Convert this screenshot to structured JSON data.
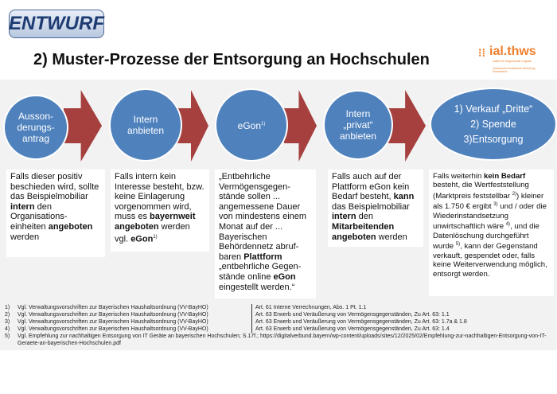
{
  "header": {
    "draft_badge": "ENTWURF",
    "title": "2) Muster-Prozesse der Entsorgung an Hochschulen",
    "logo": {
      "name": "ial.thws",
      "line1": "Institut für Angewandte Logistik",
      "line2": "Technische Hochschule Würzburg-Schweinfurt"
    }
  },
  "colors": {
    "circle": "#4f81bd",
    "arrow": "#a5403f",
    "background": "#f2f2f2"
  },
  "steps": [
    {
      "lines": [
        "Ausson-",
        "derungs-",
        "antrag"
      ]
    },
    {
      "lines": [
        "Intern",
        "anbieten"
      ]
    },
    {
      "label": "eGon",
      "sup": "1)"
    },
    {
      "lines": [
        "Intern",
        "„privat“",
        "anbieten"
      ]
    },
    {
      "lines": [
        "1) Verkauf „Dritte“",
        "2) Spende",
        "3)Entsorgung"
      ]
    }
  ],
  "boxes": [
    {
      "parts": [
        [
          "Falls dieser positiv beschieden wird, sollte das Beispielmobiliar ",
          ""
        ],
        [
          "intern",
          "b"
        ],
        [
          " den Organisations-einheiten ",
          ""
        ],
        [
          "angeboten",
          "b"
        ],
        [
          " werden",
          ""
        ]
      ]
    },
    {
      "parts": [
        [
          "Falls intern kein Interesse besteht, bzw. keine Einlagerung vorgenommen wird, muss es ",
          ""
        ],
        [
          "bayernweit angeboten",
          "b"
        ],
        [
          " werden vgl. ",
          ""
        ],
        [
          "eGon",
          "b"
        ],
        [
          "1)",
          "s"
        ]
      ]
    },
    {
      "parts": [
        [
          "„Entbehrliche Vermögensgegen-stände sollen ... angemessene Dauer von mindestens einem Monat auf der ... Bayerischen Behördennetz abruf-baren ",
          ""
        ],
        [
          "Plattform",
          "b"
        ],
        [
          " „entbehrliche Gegen-stände online ",
          ""
        ],
        [
          "eGon",
          "b"
        ],
        [
          " eingestellt werden.“",
          ""
        ]
      ]
    },
    {
      "parts": [
        [
          "Falls auch auf der Plattform eGon kein Bedarf besteht, ",
          ""
        ],
        [
          "kann",
          "b"
        ],
        [
          " das Beispielmobiliar ",
          ""
        ],
        [
          "intern",
          "b"
        ],
        [
          " den ",
          ""
        ],
        [
          "Mitarbeitenden angeboten",
          "b"
        ],
        [
          " werden",
          ""
        ]
      ]
    },
    {
      "parts": [
        [
          "Falls weiterhin ",
          ""
        ],
        [
          "kein Bedarf",
          "b"
        ],
        [
          " besteht, die Wertfeststellung (Marktpreis feststellbar ",
          ""
        ],
        [
          "2)",
          "s"
        ],
        [
          ") kleiner als 1.750 € ergibt ",
          ""
        ],
        [
          "3)",
          "s"
        ],
        [
          " und / oder die Wiederinstandsetzung unwirtschaftlich wäre ",
          ""
        ],
        [
          "4)",
          "s"
        ],
        [
          ", und die Datenlöschung durchgeführt wurde ",
          ""
        ],
        [
          "5)",
          "s"
        ],
        [
          ", kann der Gegenstand verkauft, gespendet oder, falls keine Weiterverwendung möglich, entsorgt werden.",
          ""
        ]
      ]
    }
  ],
  "footnotes": [
    {
      "n": "1)",
      "a": "Vgl. Verwaltungsvorschriften zur Bayerischen Haushaltsordnung (VV-BayHO)",
      "b": "Art. 61 Interne Verrechnungen, Abs. 1 Pt. 1.1"
    },
    {
      "n": "2)",
      "a": "Vgl. Verwaltungsvorschriften zur Bayerischen Haushaltsordnung (VV-BayHO)",
      "b": "Art. 63 Erwerb und Veräußerung von Vermögensgegenständen, Zu Art. 63: 1.1"
    },
    {
      "n": "3)",
      "a": "Vgl. Verwaltungsvorschriften zur Bayerischen Haushaltsordnung (VV-BayHO)",
      "b": "Art. 63 Erwerb und Veräußerung von Vermögensgegenständen, Zu Art. 63: 1.7a & 1.8"
    },
    {
      "n": "4)",
      "a": "Vgl. Verwaltungsvorschriften zur Bayerischen Haushaltsordnung (VV-BayHO)",
      "b": "Art. 63 Erwerb und Veräußerung von Vermögensgegenständen, Zu Art. 63: 1.4"
    },
    {
      "n": "5)",
      "text": "Vgl. Empfehlung zur nachhaltigen Entsorgung von IT Geräte an bayerischen Hochschulen; S.17f.; https://digitalverbund.bayern/wp-content/uploads/sites/12/2025/02/Empfehlung-zur-nachhaltigen-Entsorgung-von-IT-Geraete-an-bayerischen-Hochschulen.pdf"
    }
  ]
}
